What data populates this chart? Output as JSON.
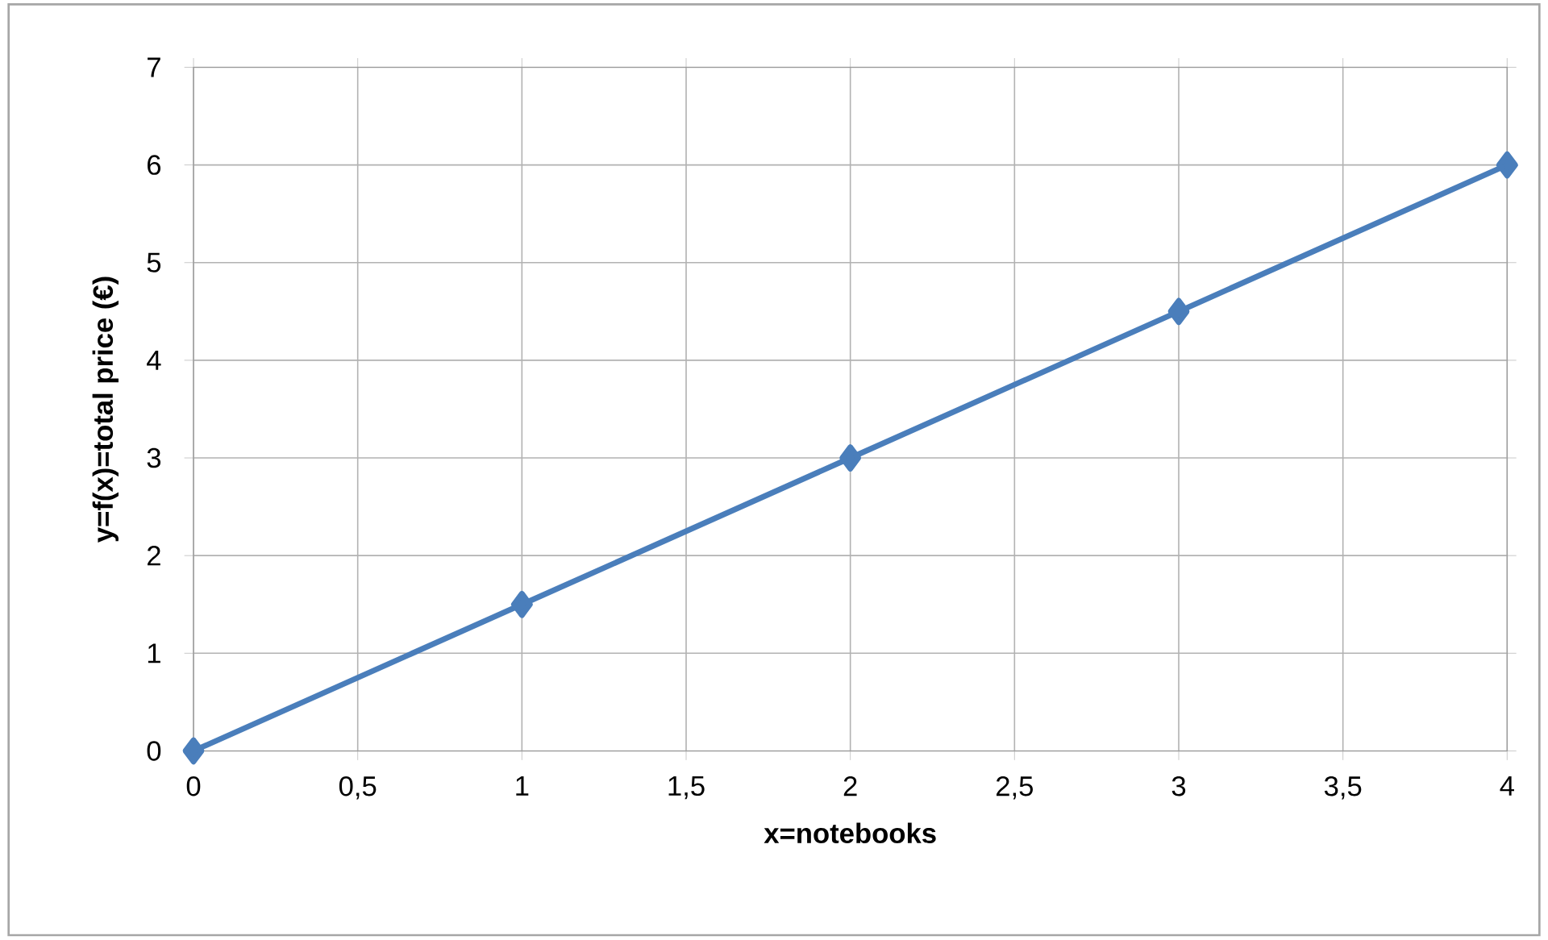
{
  "chart_data": {
    "type": "line",
    "xlabel": "x=notebooks",
    "ylabel": "y=f(x)=total price (€)",
    "x": [
      0,
      1,
      2,
      3,
      4
    ],
    "series": [
      {
        "color": "#4a7ebb",
        "values": [
          0,
          1.5,
          3,
          4.5,
          6
        ]
      }
    ],
    "xlim": [
      0,
      4
    ],
    "xticks": [
      0,
      {
        "value": 0.5,
        "label": "0,5"
      },
      1,
      {
        "value": 1.5,
        "label": "1,5"
      },
      2,
      {
        "value": 2.5,
        "label": "2,5"
      },
      3,
      {
        "value": 3.5,
        "label": "3,5"
      },
      4
    ],
    "ylim": [
      0,
      7
    ],
    "yticks": [
      0,
      1,
      2,
      3,
      4,
      5,
      6,
      7
    ],
    "grid": true,
    "marker": "diamond",
    "line_style": "solid"
  }
}
